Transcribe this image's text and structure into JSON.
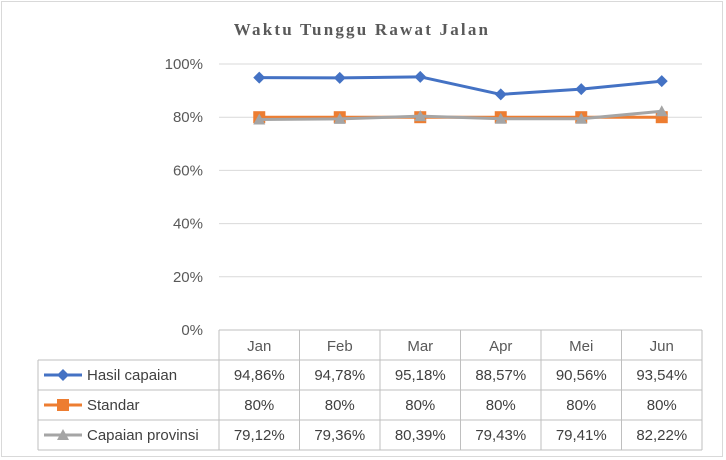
{
  "chart_data": {
    "type": "line",
    "title": "Waktu Tunggu Rawat Jalan",
    "categories": [
      "Jan",
      "Feb",
      "Mar",
      "Apr",
      "Mei",
      "Jun"
    ],
    "y_ticks": [
      "0%",
      "20%",
      "40%",
      "60%",
      "80%",
      "100%"
    ],
    "ylim": [
      0,
      100
    ],
    "grid": true,
    "legend": "data-table",
    "series": [
      {
        "name": "Hasil capaian",
        "color": "#4472c4",
        "marker": "diamond",
        "values": [
          94.86,
          94.78,
          95.18,
          88.57,
          90.56,
          93.54
        ],
        "labels": [
          "94,86%",
          "94,78%",
          "95,18%",
          "88,57%",
          "90,56%",
          "93,54%"
        ]
      },
      {
        "name": "Standar",
        "color": "#ed7d31",
        "marker": "square",
        "values": [
          80,
          80,
          80,
          80,
          80,
          80
        ],
        "labels": [
          "80%",
          "80%",
          "80%",
          "80%",
          "80%",
          "80%"
        ]
      },
      {
        "name": "Capaian provinsi",
        "color": "#a5a5a5",
        "marker": "triangle",
        "values": [
          79.12,
          79.36,
          80.39,
          79.43,
          79.41,
          82.22
        ],
        "labels": [
          "79,12%",
          "79,36%",
          "80,39%",
          "79,43%",
          "79,41%",
          "82,22%"
        ]
      }
    ]
  }
}
